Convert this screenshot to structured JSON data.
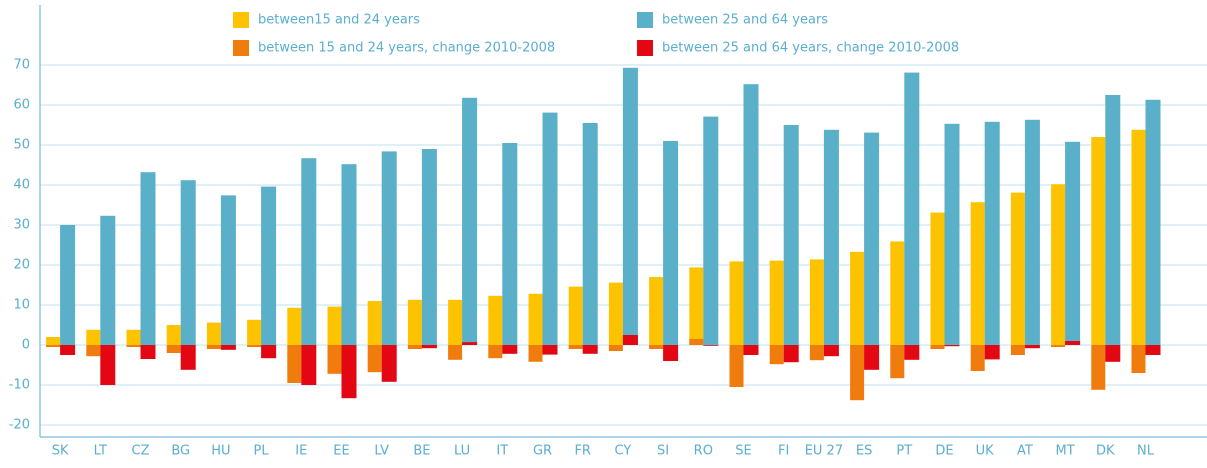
{
  "chart_data": {
    "type": "bar",
    "categories": [
      "SK",
      "LT",
      "CZ",
      "BG",
      "HU",
      "PL",
      "IE",
      "EE",
      "LV",
      "BE",
      "LU",
      "IT",
      "GR",
      "FR",
      "CY",
      "SI",
      "RO",
      "SE",
      "FI",
      "EU 27",
      "ES",
      "PT",
      "DE",
      "UK",
      "AT",
      "MT",
      "DK",
      "NL"
    ],
    "series": [
      {
        "name": "between15 and 24 years",
        "color": "#fdc300",
        "values": [
          2,
          3.8,
          3.8,
          5,
          5.6,
          6.3,
          9.3,
          9.6,
          11,
          11.3,
          11.3,
          12.3,
          12.8,
          14.6,
          15.6,
          17,
          19.4,
          20.9,
          21.1,
          21.4,
          23.3,
          25.9,
          33.1,
          35.7,
          38.1,
          40.2,
          52,
          53.8
        ]
      },
      {
        "name": "between 25 and 64 years",
        "color": "#5aafc9",
        "values": [
          30,
          32.3,
          43.2,
          41.2,
          37.4,
          39.6,
          46.7,
          45.2,
          48.4,
          49,
          61.8,
          50.5,
          58.1,
          55.5,
          69.3,
          51,
          57.1,
          65.2,
          55,
          53.8,
          53.1,
          68.1,
          55.3,
          55.8,
          56.3,
          50.8,
          62.5,
          61.3
        ]
      },
      {
        "name": "between 15 and 24 years, change 2010-2008",
        "color": "#f07c0e",
        "values": [
          -0.5,
          -2.8,
          -0.5,
          -2,
          -1,
          -0.5,
          -9.5,
          -7.2,
          -6.8,
          -1,
          -3.7,
          -3.3,
          -4.2,
          -1,
          -1.5,
          -1,
          1.5,
          -10.5,
          -4.8,
          -3.8,
          -13.8,
          -8.3,
          -1,
          -6.5,
          -2.5,
          -0.5,
          -11.2,
          -7
        ]
      },
      {
        "name": "between 25 and 64 years, change 2010-2008",
        "color": "#e30613",
        "values": [
          -2.5,
          -10,
          -3.5,
          -6.2,
          -1.2,
          -3.3,
          -10,
          -13.3,
          -9.2,
          -0.8,
          0.7,
          -2.2,
          -2.4,
          -2.2,
          2.5,
          -4,
          -0.2,
          -2.5,
          -4.3,
          -2.8,
          -6.2,
          -3.7,
          -0.3,
          -3.6,
          -0.8,
          1,
          -4.2,
          -2.5
        ]
      }
    ],
    "ylim": [
      -23,
      85
    ],
    "yticks": [
      -20,
      -10,
      0,
      10,
      20,
      30,
      40,
      50,
      60,
      70
    ],
    "grid": true
  }
}
